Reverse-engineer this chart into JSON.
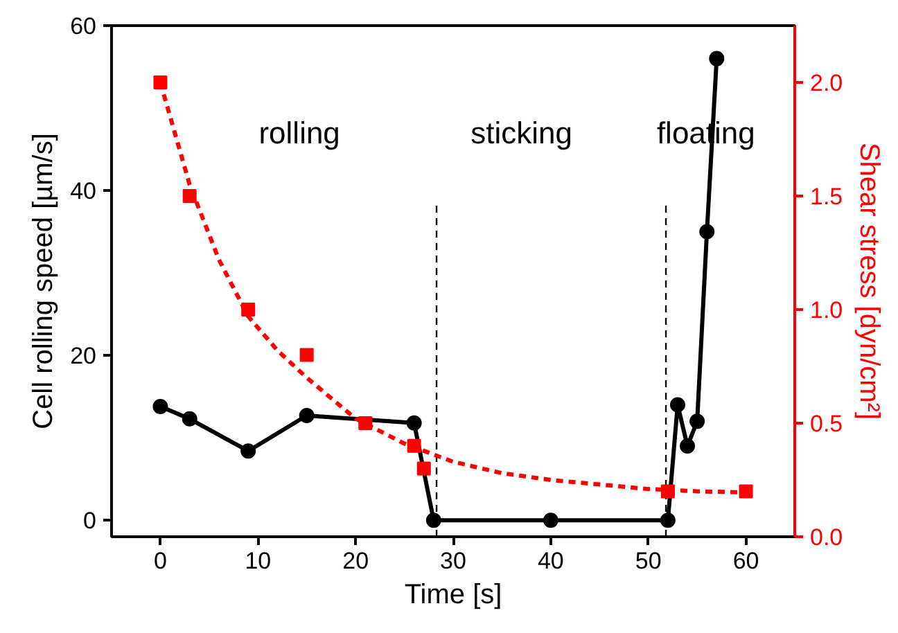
{
  "chart_data": {
    "type": "line",
    "xlabel": "Time [s]",
    "ylabel": "Cell rolling speed [µm/s]",
    "y2label": "Shear stress [dyn/cm²]",
    "xlim": [
      -5,
      65
    ],
    "xticks": [
      0,
      10,
      20,
      30,
      40,
      50,
      60
    ],
    "ylim": [
      -2,
      60
    ],
    "yticks": [
      0,
      20,
      40,
      60
    ],
    "y2lim": [
      0,
      2.25
    ],
    "y2ticks": [
      {
        "value": 0,
        "label": "0.0"
      },
      0.5,
      {
        "value": 1,
        "label": "1.0"
      },
      1.5,
      {
        "value": 2,
        "label": "2.0"
      }
    ],
    "grid": false,
    "series": [
      {
        "color": "#000000",
        "marker": "circle",
        "line_style": "solid",
        "x": [
          0,
          3,
          9,
          15,
          26,
          28,
          40,
          52,
          53,
          54,
          55,
          56,
          57
        ],
        "values": [
          13.8,
          12.3,
          8.4,
          12.7,
          11.8,
          0,
          0,
          0,
          14,
          9,
          12,
          35,
          56
        ]
      },
      {
        "type": "scatter",
        "color": "#ff0000",
        "marker": "square",
        "axis": "y2",
        "x": [
          0,
          3,
          9,
          15,
          21,
          26,
          27,
          52,
          60
        ],
        "values": [
          2.0,
          1.5,
          1.0,
          0.8,
          0.5,
          0.4,
          0.3,
          0.2,
          0.2
        ]
      },
      {
        "type": "line",
        "color": "#ff0000",
        "marker": "none",
        "line_style": "dashed",
        "axis": "y2",
        "x": [
          0,
          3,
          6,
          9,
          12,
          15,
          20,
          25,
          30,
          35,
          40,
          45,
          50,
          55,
          60
        ],
        "values": [
          2.0,
          1.55,
          1.22,
          0.97,
          0.82,
          0.7,
          0.52,
          0.41,
          0.33,
          0.28,
          0.25,
          0.23,
          0.21,
          0.2,
          0.195
        ]
      }
    ],
    "ref_lines": [
      {
        "axis": "x",
        "value": 28.3,
        "color": "#000000",
        "line_style": "dashed"
      },
      {
        "axis": "x",
        "value": 51.8,
        "color": "#000000",
        "line_style": "dashed"
      }
    ],
    "annotations": [
      "rolling",
      "sticking",
      "floating"
    ]
  }
}
